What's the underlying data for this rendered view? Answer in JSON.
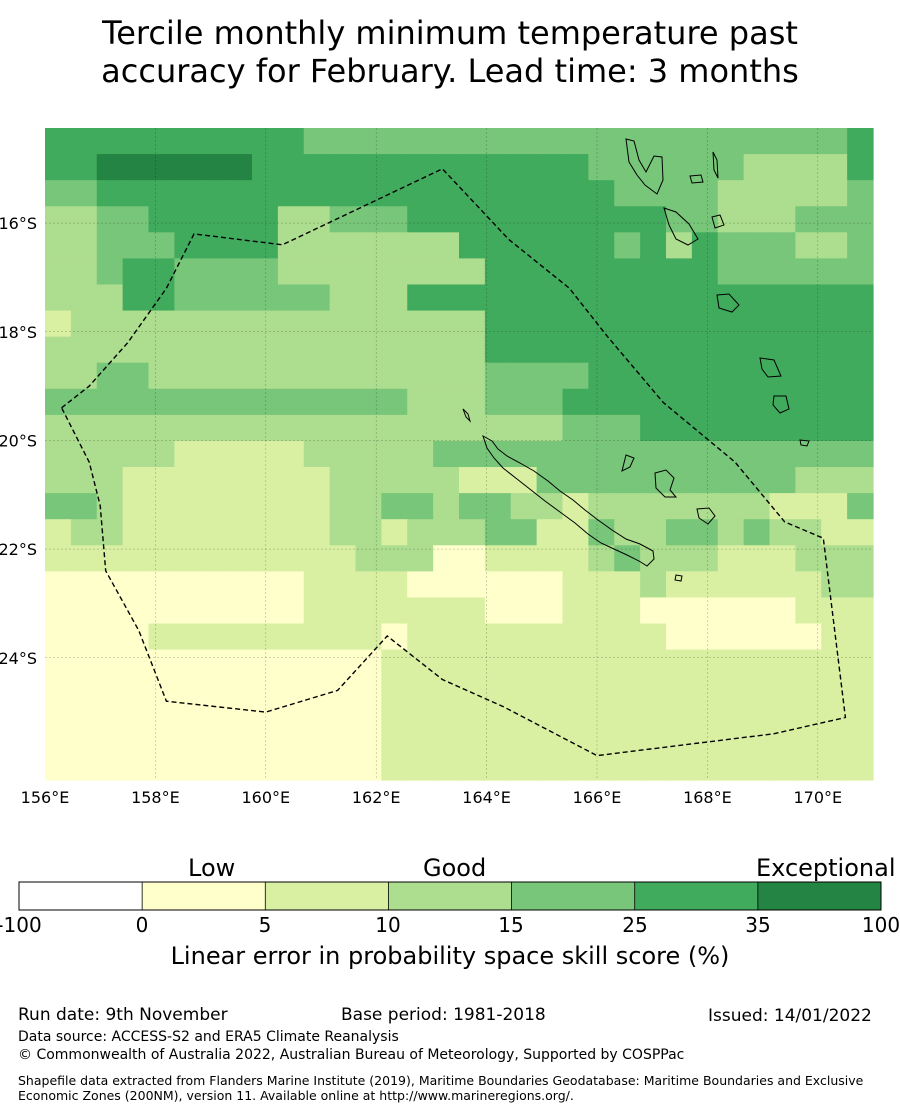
{
  "title": {
    "line1": "Tercile monthly minimum temperature past",
    "line2": "accuracy for February. Lead time: 3 months"
  },
  "map": {
    "lon_range": [
      156,
      171
    ],
    "lat_range": [
      -26.25,
      -14.25
    ],
    "lon_ticks": [
      "156°E",
      "158°E",
      "160°E",
      "162°E",
      "164°E",
      "166°E",
      "168°E",
      "170°E"
    ],
    "lat_ticks": [
      "16°S",
      "18°S",
      "20°S",
      "22°S",
      "24°S"
    ],
    "grid": [
      "55555555554444444444444444444445",
      "55666666555555555555544444433335",
      "44555555555555555555554444333334",
      "33445555533444555555555544333444",
      "33444555533333335555554535444334",
      "33455444433333333555555555444444",
      "33355444444333555555555555555555",
      "23333333333333333555555555555555",
      "33333333333333333555555555555555",
      "33443333333333333444455555555555",
      "44444444444444333444555555555555",
      "33333333333333333333444555555555",
      "33333222223333344444444444444444",
      "33322222222333332224444444444333",
      "44322222222334434433233333332224",
      "23322222222332333442243344343322",
      "22222222222233311222234333222333",
      "11111111112222111111222322222233",
      "11111111112222222111222111111222",
      "11112222222221222222222211111122",
      "11111111111112222222222222222222",
      "11111111111112222222222222222222",
      "11111111111112222222222222222222",
      "11111111111112222222222222222222",
      "11111111111112222222222222222222"
    ],
    "zone_outline": [
      [
        156.3,
        -19.4
      ],
      [
        156.8,
        -19.0
      ],
      [
        157.5,
        -18.2
      ],
      [
        158.2,
        -17.2
      ],
      [
        158.7,
        -16.2
      ],
      [
        160.3,
        -16.4
      ],
      [
        163.2,
        -15.0
      ],
      [
        164.4,
        -16.3
      ],
      [
        165.5,
        -17.2
      ],
      [
        166.2,
        -18.1
      ],
      [
        167.2,
        -19.3
      ],
      [
        168.5,
        -20.4
      ],
      [
        169.4,
        -21.5
      ],
      [
        170.1,
        -21.8
      ],
      [
        170.5,
        -25.1
      ],
      [
        169.2,
        -25.4
      ],
      [
        166.0,
        -25.8
      ],
      [
        164.3,
        -24.9
      ],
      [
        163.2,
        -24.4
      ],
      [
        162.2,
        -23.6
      ],
      [
        161.3,
        -24.6
      ],
      [
        160.0,
        -25.0
      ],
      [
        158.2,
        -24.8
      ],
      [
        157.7,
        -23.5
      ],
      [
        157.1,
        -22.4
      ],
      [
        157.0,
        -21.2
      ],
      [
        156.8,
        -20.4
      ]
    ]
  },
  "colorbar": {
    "categories": [
      "Low",
      "Good",
      "Exceptional"
    ],
    "ticks": [
      "-100",
      "0",
      "5",
      "10",
      "15",
      "25",
      "35",
      "100"
    ],
    "colors": [
      "#ffffff",
      "#ffffcc",
      "#d9f0a3",
      "#addd8e",
      "#78c679",
      "#41ab5d",
      "#238443"
    ],
    "label": "Linear error in probability space skill score (%)"
  },
  "footer": {
    "run_date": "Run date: 9th November",
    "base_period": "Base period: 1981-2018",
    "issued": "Issued: 14/01/2022",
    "data_source": "Data source: ACCESS-S2 and ERA5 Climate Reanalysis",
    "copyright": "© Commonwealth of Australia 2022, Australian Bureau of Meteorology, Supported by COSPPac",
    "shapefile": "Shapefile data extracted from Flanders Marine Institute (2019), Maritime Boundaries Geodatabase: Maritime Boundaries and Exclusive Economic Zones (200NM), version 11. Available online at http://www.marineregions.org/."
  }
}
